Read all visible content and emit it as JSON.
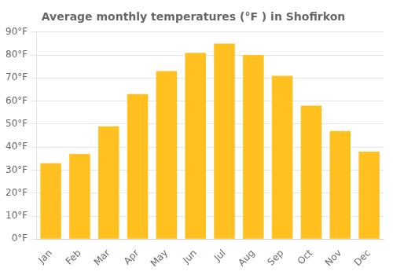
{
  "chart_data": {
    "type": "bar",
    "title": "Average monthly temperatures (°F ) in Shofirkon",
    "categories": [
      "Jan",
      "Feb",
      "Mar",
      "Apr",
      "May",
      "Jun",
      "Jul",
      "Aug",
      "Sep",
      "Oct",
      "Nov",
      "Dec"
    ],
    "values": [
      33,
      37,
      49,
      63,
      73,
      81,
      85,
      80,
      71,
      58,
      47,
      38
    ],
    "color": "#FFC020",
    "ylim": [
      0,
      90
    ],
    "yticks": [
      {
        "value": 0,
        "label": "0°F"
      },
      {
        "value": 10,
        "label": "10°F"
      },
      {
        "value": 20,
        "label": "20°F"
      },
      {
        "value": 30,
        "label": "30°F"
      },
      {
        "value": 40,
        "label": "40°F"
      },
      {
        "value": 50,
        "label": "50°F"
      },
      {
        "value": 60,
        "label": "60°F"
      },
      {
        "value": 70,
        "label": "70°F"
      },
      {
        "value": 80,
        "label": "80°F"
      },
      {
        "value": 90,
        "label": "90°F"
      }
    ],
    "grid": true
  }
}
